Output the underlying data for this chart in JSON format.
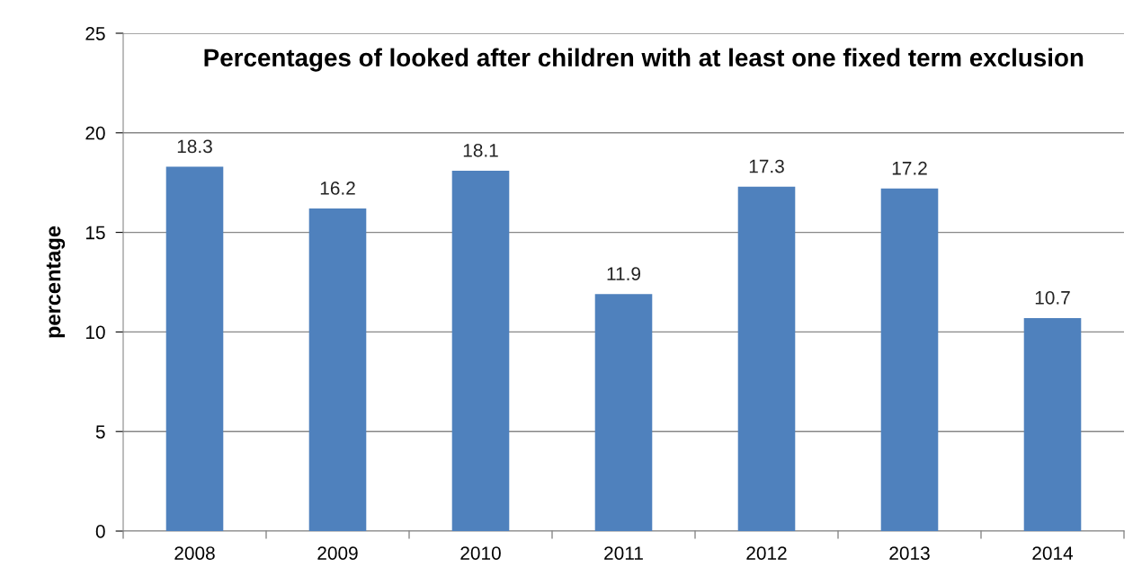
{
  "chart_data": {
    "type": "bar",
    "title": "Percentages of looked after children with at least one fixed term exclusion",
    "ylabel": "percentage",
    "categories": [
      "2008",
      "2009",
      "2010",
      "2011",
      "2012",
      "2013",
      "2014"
    ],
    "values": [
      18.3,
      16.2,
      18.1,
      11.9,
      17.3,
      17.2,
      10.7
    ],
    "color": "#4f81bd",
    "ylim": [
      0,
      25
    ],
    "yticks": [
      0,
      5,
      10,
      15,
      20,
      25
    ],
    "grid": "y",
    "data_labels": true
  }
}
